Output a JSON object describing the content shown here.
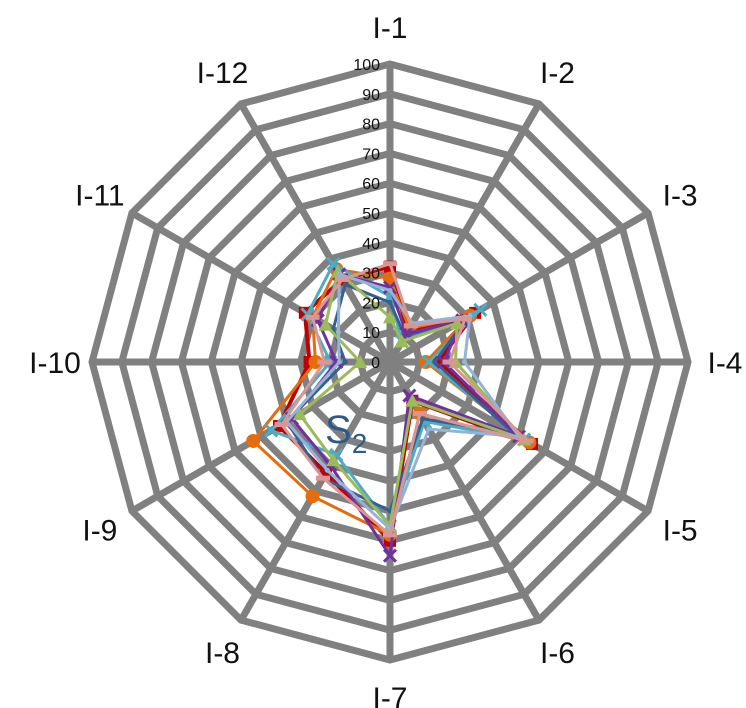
{
  "chart_data": {
    "type": "radar",
    "title": "",
    "annotation": {
      "main": "S",
      "sub": "2"
    },
    "categories": [
      "I-1",
      "I-2",
      "I-3",
      "I-4",
      "I-5",
      "I-6",
      "I-7",
      "I-8",
      "I-9",
      "I-10",
      "I-11",
      "I-12"
    ],
    "r_ticks": [
      "0",
      "10",
      "20",
      "30",
      "40",
      "50",
      "60",
      "70",
      "80",
      "90",
      "100"
    ],
    "r_range": [
      0,
      100
    ],
    "grid": true,
    "grid_color": "#808080",
    "series": [
      {
        "color": "#c00000",
        "marker": "square",
        "values": [
          32,
          12,
          33,
          16,
          55,
          15,
          60,
          43,
          43,
          27,
          33,
          32
        ]
      },
      {
        "color": "#e46c0a",
        "marker": "circle",
        "values": [
          28,
          13,
          31,
          12,
          54,
          20,
          58,
          52,
          53,
          25,
          30,
          36
        ]
      },
      {
        "color": "#4bacc6",
        "marker": "x",
        "values": [
          22,
          8,
          35,
          13,
          52,
          23,
          55,
          36,
          46,
          20,
          32,
          38
        ]
      },
      {
        "color": "#366092",
        "marker": "line",
        "values": [
          20,
          10,
          30,
          15,
          48,
          22,
          50,
          45,
          40,
          15,
          22,
          30
        ]
      },
      {
        "color": "#7030a0",
        "marker": "x",
        "values": [
          25,
          11,
          28,
          18,
          50,
          13,
          65,
          40,
          38,
          18,
          28,
          34
        ]
      },
      {
        "color": "#9bbb59",
        "marker": "triangle",
        "values": [
          15,
          8,
          26,
          22,
          52,
          15,
          55,
          38,
          35,
          10,
          25,
          35
        ]
      },
      {
        "color": "#95b3d7",
        "marker": "line",
        "values": [
          24,
          15,
          31,
          25,
          50,
          26,
          56,
          42,
          40,
          17,
          20,
          34
        ]
      },
      {
        "color": "#d99694",
        "marker": "dash",
        "values": [
          33,
          14,
          29,
          20,
          53,
          20,
          58,
          45,
          42,
          22,
          30,
          32
        ]
      }
    ]
  }
}
